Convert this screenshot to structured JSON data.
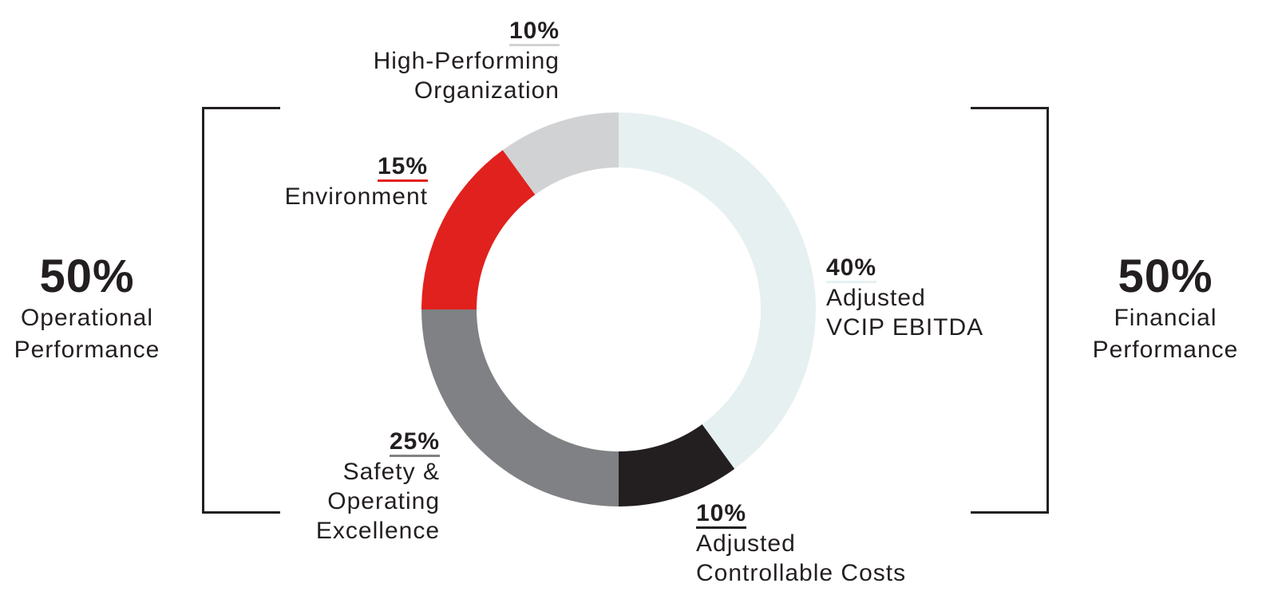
{
  "chart_data": {
    "type": "pie",
    "donut": true,
    "slices": [
      {
        "pct": "40%",
        "value": 40,
        "label": [
          "Adjusted",
          "VCIP EBITDA"
        ],
        "color": "#e6f0f0"
      },
      {
        "pct": "10%",
        "value": 10,
        "label": [
          "Adjusted",
          "Controllable Costs"
        ],
        "color": "#231f20"
      },
      {
        "pct": "25%",
        "value": 25,
        "label": [
          "Safety &",
          "Operating",
          "Excellence"
        ],
        "color": "#808184"
      },
      {
        "pct": "15%",
        "value": 15,
        "label": [
          "Environment"
        ],
        "color": "#e1211d"
      },
      {
        "pct": "10%",
        "value": 10,
        "label": [
          "High-Performing",
          "Organization"
        ],
        "color": "#d1d2d4"
      }
    ],
    "groups": [
      {
        "pct": "50%",
        "label": [
          "Operational",
          "Performance"
        ]
      },
      {
        "pct": "50%",
        "label": [
          "Financial",
          "Performance"
        ]
      }
    ]
  }
}
